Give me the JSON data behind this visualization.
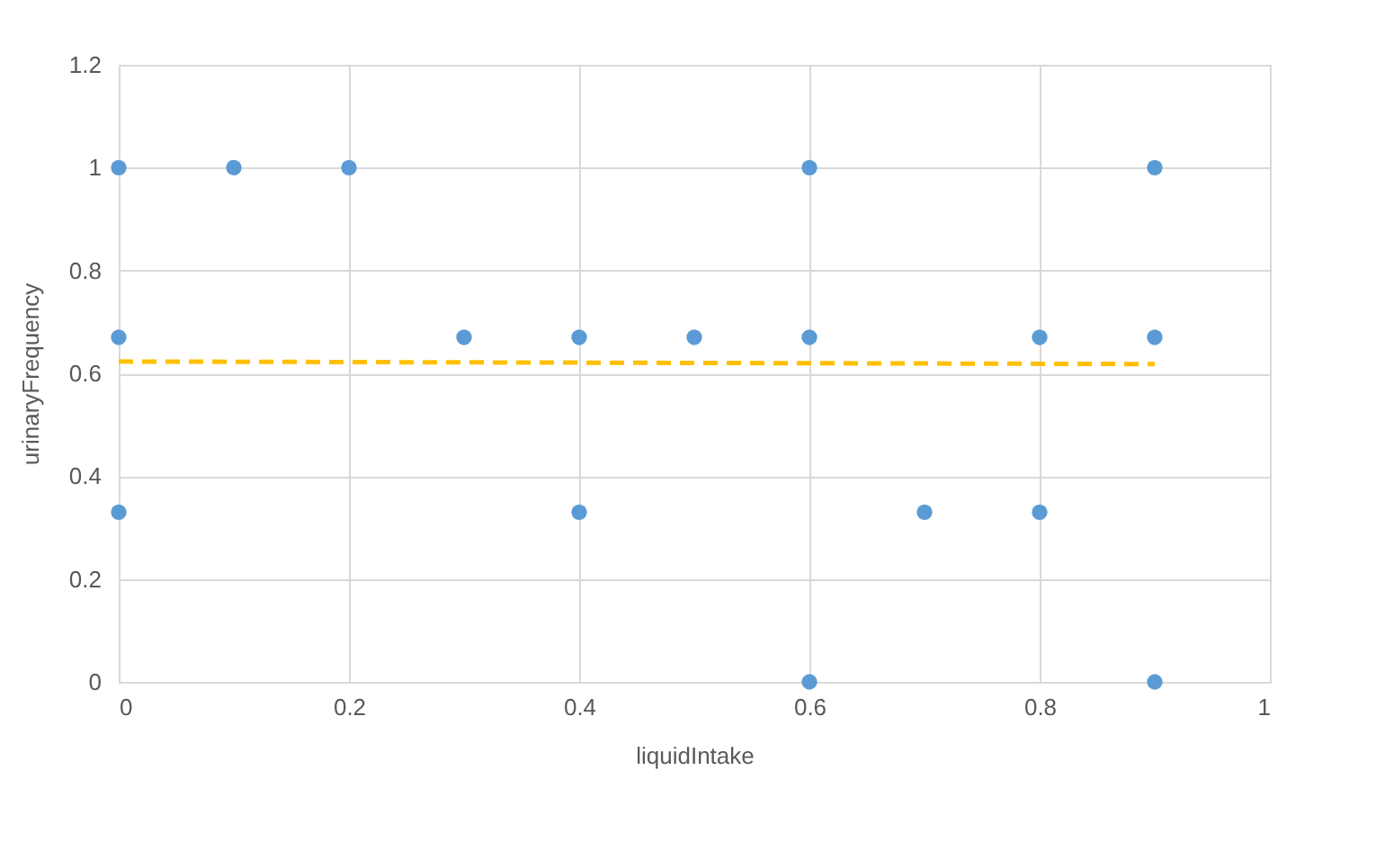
{
  "chart_data": {
    "type": "scatter",
    "xlabel": "liquidIntake",
    "ylabel": "urinaryFrequency",
    "xlim": [
      0,
      1
    ],
    "xticks": [
      0,
      0.2,
      0.4,
      0.6,
      0.8,
      1
    ],
    "ylim": [
      0,
      1.2
    ],
    "yticks": [
      0,
      0.2,
      0.4,
      0.6,
      0.8,
      1,
      1.2
    ],
    "grid": true,
    "legend": false,
    "series": [
      {
        "marker": "circle",
        "color": "#5b9bd5",
        "x": [
          0,
          0.1,
          0.2,
          0.6,
          0.9,
          0,
          0.3,
          0.4,
          0.5,
          0.6,
          0.8,
          0.9,
          0,
          0.4,
          0.7,
          0.8,
          0.6,
          0.9
        ],
        "values": [
          1,
          1,
          1,
          1,
          1,
          0.67,
          0.67,
          0.67,
          0.67,
          0.67,
          0.67,
          0.67,
          0.33,
          0.33,
          0.33,
          0.33,
          0,
          0
        ]
      },
      {
        "type": "line",
        "line_style": "dashed",
        "color": "#ffc000",
        "x": [
          0,
          0.9
        ],
        "values": [
          0.623,
          0.618
        ]
      }
    ]
  }
}
